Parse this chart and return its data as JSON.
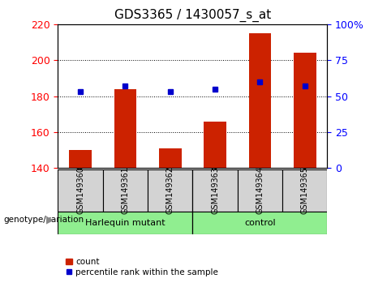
{
  "title": "GDS3365 / 1430057_s_at",
  "samples": [
    "GSM149360",
    "GSM149361",
    "GSM149362",
    "GSM149363",
    "GSM149364",
    "GSM149365"
  ],
  "bar_values": [
    150,
    184,
    151,
    166,
    215,
    204
  ],
  "percentile_values": [
    53,
    57,
    53,
    55,
    60,
    57
  ],
  "bar_color": "#cc2200",
  "dot_color": "#0000cc",
  "ylim_left": [
    140,
    220
  ],
  "ylim_right": [
    0,
    100
  ],
  "yticks_left": [
    140,
    160,
    180,
    200,
    220
  ],
  "yticks_right": [
    0,
    25,
    50,
    75,
    100
  ],
  "ytick_labels_right": [
    "0",
    "25",
    "50",
    "75",
    "100%"
  ],
  "grid_values": [
    160,
    180,
    200
  ],
  "group_label": "genotype/variation",
  "legend_count_label": "count",
  "legend_percentile_label": "percentile rank within the sample",
  "bar_width": 0.5,
  "baseline": 140,
  "title_fontsize": 11,
  "tick_fontsize": 9,
  "sample_box_color": "#d3d3d3",
  "group_box_color": "#90ee90",
  "harlequin_label": "Harlequin mutant",
  "control_label": "control"
}
